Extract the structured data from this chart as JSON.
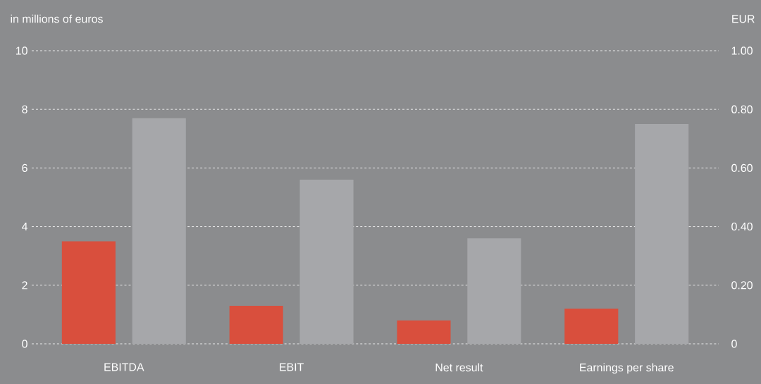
{
  "chart_data": {
    "type": "bar",
    "ylabel": "in millions of euros",
    "y2label": "EUR",
    "categories": [
      "EBITDA",
      "EBIT",
      "Net result",
      "Earnings per share"
    ],
    "series": [
      {
        "color": "#d94f3d",
        "values": [
          3.5,
          1.3,
          0.8,
          null
        ]
      },
      {
        "color": "#a6a7aa",
        "values": [
          7.7,
          5.6,
          3.6,
          null
        ]
      },
      {
        "color": "#d94f3d",
        "axis": "y2",
        "values": [
          null,
          null,
          null,
          0.12
        ]
      },
      {
        "color": "#a6a7aa",
        "axis": "y2",
        "values": [
          null,
          null,
          null,
          0.75
        ]
      }
    ],
    "ylim": [
      0,
      10
    ],
    "yticks": [
      0,
      2,
      4,
      6,
      8,
      10
    ],
    "y2lim": [
      0,
      1
    ],
    "y2ticks": [
      0,
      {
        "value": 0.2,
        "label": "0.20"
      },
      {
        "value": 0.4,
        "label": "0.40"
      },
      {
        "value": 0.6,
        "label": "0.60"
      },
      {
        "value": 0.8,
        "label": "0.80"
      },
      {
        "value": 1.0,
        "label": "1.00"
      }
    ],
    "grid": "y"
  }
}
